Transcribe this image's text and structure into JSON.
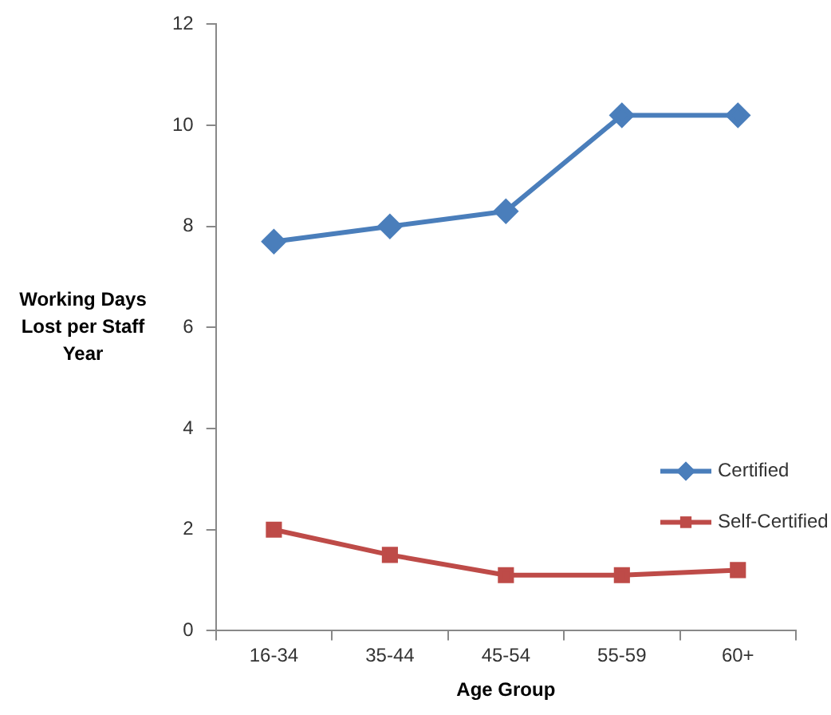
{
  "chart_data": {
    "type": "line",
    "xlabel": "Age Group",
    "ylabel": "Working Days Lost per Staff Year",
    "categories": [
      "16-34",
      "35-44",
      "45-54",
      "55-59",
      "60+"
    ],
    "series": [
      {
        "name": "Certified",
        "color": "#4a7ebb",
        "marker": "diamond",
        "values": [
          7.7,
          8.0,
          8.3,
          10.2,
          10.2
        ]
      },
      {
        "name": "Self-Certified",
        "color": "#be4b48",
        "marker": "square",
        "values": [
          2.0,
          1.5,
          1.1,
          1.1,
          1.2
        ]
      }
    ],
    "ylim": [
      0,
      12
    ],
    "yticks": [
      0,
      2,
      4,
      6,
      8,
      10,
      12
    ],
    "grid": false,
    "legend": "right",
    "line_style": "solid"
  }
}
